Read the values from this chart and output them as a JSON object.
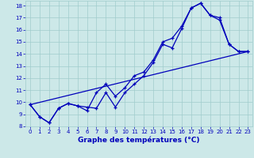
{
  "title": "Graphe des températures (°C)",
  "bg_color": "#cce8e8",
  "grid_color": "#a0cccc",
  "line_color": "#0000bb",
  "xlim": [
    -0.5,
    23.5
  ],
  "ylim": [
    8,
    18.4
  ],
  "xticks": [
    0,
    1,
    2,
    3,
    4,
    5,
    6,
    7,
    8,
    9,
    10,
    11,
    12,
    13,
    14,
    15,
    16,
    17,
    18,
    19,
    20,
    21,
    22,
    23
  ],
  "yticks": [
    8,
    9,
    10,
    11,
    12,
    13,
    14,
    15,
    16,
    17,
    18
  ],
  "line1_x": [
    0,
    1,
    2,
    3,
    4,
    5,
    6,
    7,
    8,
    9,
    10,
    11,
    12,
    13,
    14,
    15,
    16,
    17,
    18,
    19,
    20,
    21,
    22,
    23
  ],
  "line1_y": [
    9.8,
    8.8,
    8.3,
    9.5,
    9.9,
    9.7,
    9.6,
    9.5,
    10.8,
    9.6,
    10.8,
    11.5,
    12.2,
    13.3,
    14.8,
    14.5,
    16.1,
    17.8,
    18.2,
    17.2,
    16.8,
    14.8,
    14.2,
    14.2
  ],
  "line2_x": [
    0,
    1,
    2,
    3,
    4,
    5,
    6,
    7,
    8,
    9,
    10,
    11,
    12,
    13,
    14,
    15,
    16,
    17,
    18,
    19,
    20,
    21,
    22,
    23
  ],
  "line2_y": [
    9.8,
    8.8,
    8.3,
    9.5,
    9.9,
    9.7,
    9.3,
    10.8,
    11.5,
    10.5,
    11.2,
    12.2,
    12.5,
    13.5,
    15.0,
    15.3,
    16.3,
    17.8,
    18.2,
    17.2,
    17.0,
    14.8,
    14.2,
    14.2
  ],
  "line3_x": [
    0,
    23
  ],
  "line3_y": [
    9.8,
    14.2
  ],
  "tick_fontsize": 5.0,
  "xlabel_fontsize": 6.5
}
